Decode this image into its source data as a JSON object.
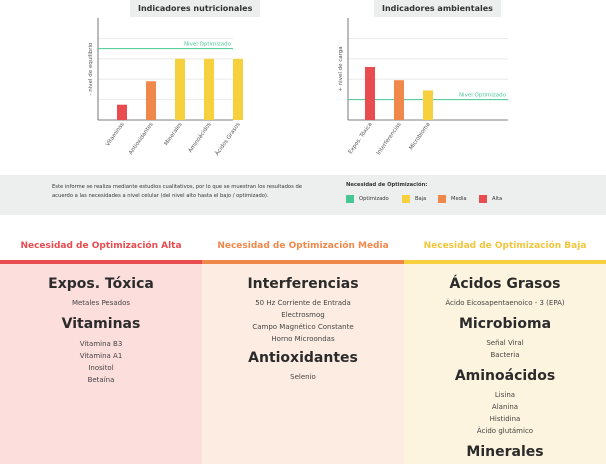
{
  "charts": {
    "nutritional": {
      "title": "Indicadores nutricionales",
      "ylabel": "- nivel de equilibrio",
      "line_label": "Nivel Optimizado"
    },
    "environmental": {
      "title": "Indicadores ambientales",
      "ylabel": "+ nivel de carga",
      "line_label": "Nivel Optimizado"
    }
  },
  "chart_data": [
    {
      "type": "bar",
      "title": "Indicadores nutricionales",
      "ylabel": "- nivel de equilibrio",
      "categories": [
        "Vitaminas",
        "Antioxidantes",
        "Minerales",
        "Aminoácidos",
        "Ácidos Grasos"
      ],
      "values": [
        1.5,
        3.8,
        6.0,
        6.0,
        6.0
      ],
      "colors": [
        "#e84b50",
        "#f0884b",
        "#f7d13d",
        "#f7d13d",
        "#f7d13d"
      ],
      "reference_line": {
        "label": "Nivel Optimizado",
        "value": 7.0,
        "color": "#48c792"
      },
      "ylim": [
        0,
        10
      ],
      "grid": true
    },
    {
      "type": "bar",
      "title": "Indicadores ambientales",
      "ylabel": "+ nivel de carga",
      "categories": [
        "Expos. Tóxica",
        "Interferencias",
        "Microbioma"
      ],
      "values": [
        5.2,
        3.9,
        2.9
      ],
      "colors": [
        "#e84b50",
        "#f0884b",
        "#f7d13d"
      ],
      "reference_line": {
        "label": "Nivel Optimizado",
        "value": 2.0,
        "color": "#48c792"
      },
      "ylim": [
        0,
        10
      ],
      "grid": true
    }
  ],
  "info": {
    "text": "Este informe se realiza mediante estudios cualitativos, por lo que se muestran los resultados de acuerdo a las necesidades a nivel celular (del nivel alto hasta el bajo / optimizado).",
    "legend_title": "Necesidad de Optimización:",
    "legend": [
      {
        "label": "Optimizado",
        "color": "#48c792"
      },
      {
        "label": "Baja",
        "color": "#f7d13d"
      },
      {
        "label": "Media",
        "color": "#f0884b"
      },
      {
        "label": "Alta",
        "color": "#e84b50"
      }
    ]
  },
  "columns": [
    {
      "heading": "Necesidad de Optimización Alta",
      "color": "#e84b50",
      "bg": "#fcdedc",
      "groups": [
        {
          "title": "Expos. Tóxica",
          "items": [
            "Metales Pesados"
          ]
        },
        {
          "title": "Vitaminas",
          "items": [
            "Vitamina B3",
            "Vitamina A1",
            "Inositol",
            "Betaína"
          ]
        }
      ]
    },
    {
      "heading": "Necesidad de Optimización Media",
      "color": "#f0884b",
      "bg": "#fdece1",
      "groups": [
        {
          "title": "Interferencias",
          "items": [
            "50 Hz Corriente de Entrada",
            "Electrosmog",
            "Campo Magnético Constante",
            "Horno Microondas"
          ]
        },
        {
          "title": "Antioxidantes",
          "items": [
            "Selenio"
          ]
        }
      ]
    },
    {
      "heading": "Necesidad de Optimización Baja",
      "color": "#f7d13d",
      "bg": "#fdf4df",
      "groups": [
        {
          "title": "Ácidos Grasos",
          "items": [
            "Ácido Eicosapentaenoico - 3 (EPA)"
          ]
        },
        {
          "title": "Microbioma",
          "items": [
            "Señal Viral",
            "Bacteria"
          ]
        },
        {
          "title": "Aminoácidos",
          "items": [
            "Lisina",
            "Alanina",
            "Histidina",
            "Ácido glutámico"
          ]
        },
        {
          "title": "Minerales",
          "items": []
        }
      ]
    }
  ]
}
